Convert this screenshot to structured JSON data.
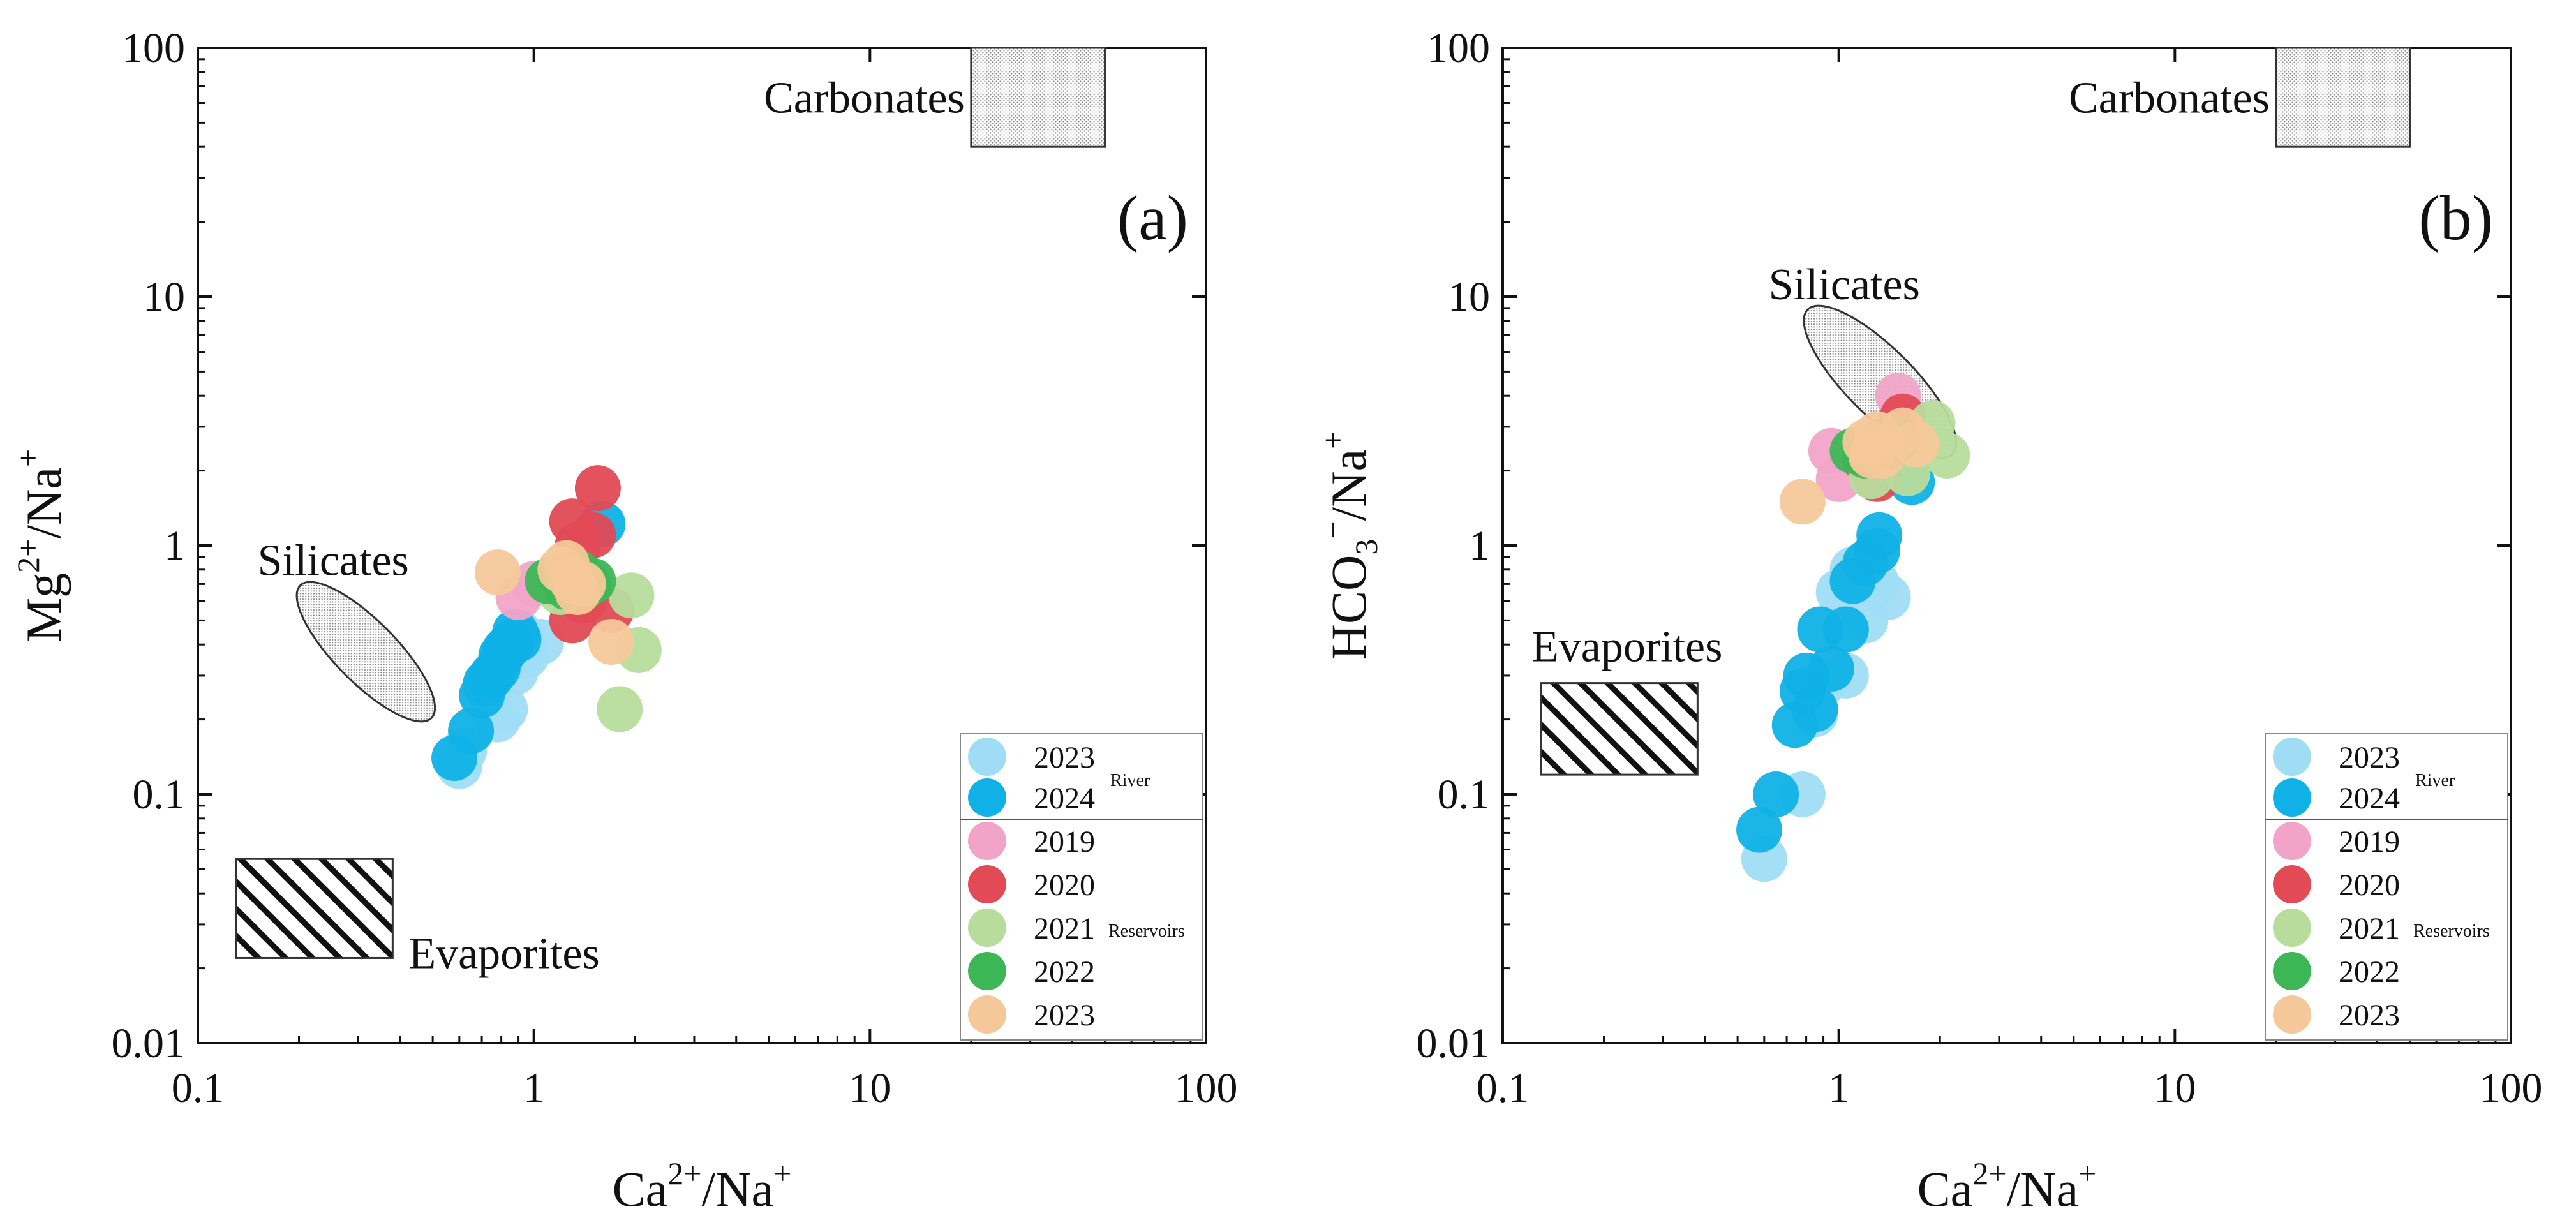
{
  "colors": {
    "river_2023": "#9FDDF5",
    "river_2024": "#0FB1E6",
    "res_2019": "#F2A4C8",
    "res_2020": "#E24A55",
    "res_2021": "#B7DC9C",
    "res_2022": "#3DB656",
    "res_2023": "#F5C89A"
  },
  "legend": {
    "river_group": "River",
    "reservoir_group": "Reservoirs",
    "river_items": [
      {
        "label": "2023",
        "color_key": "river_2023"
      },
      {
        "label": "2024",
        "color_key": "river_2024"
      }
    ],
    "reservoir_items": [
      {
        "label": "2019",
        "color_key": "res_2019"
      },
      {
        "label": "2020",
        "color_key": "res_2020"
      },
      {
        "label": "2021",
        "color_key": "res_2021"
      },
      {
        "label": "2022",
        "color_key": "res_2022"
      },
      {
        "label": "2023",
        "color_key": "res_2023"
      }
    ]
  },
  "chart_data": [
    {
      "type": "scatter",
      "panel": "(a)",
      "xscale": "log",
      "yscale": "log",
      "xlim": [
        0.1,
        100
      ],
      "ylim": [
        0.01,
        100
      ],
      "xticks": [
        "0.1",
        "1",
        "10",
        "100"
      ],
      "yticks": [
        "0.01",
        "0.1",
        "1",
        "10",
        "100"
      ],
      "xlabel": {
        "base1": "Ca",
        "sup1": "2+",
        "mid": "/Na",
        "sup2": "+",
        "sub": ""
      },
      "ylabel": {
        "base1": "Mg",
        "sup1": "2+",
        "mid": "/Na",
        "sup2": "+",
        "sub": ""
      },
      "regions": [
        {
          "name": "Carbonates",
          "label": "Carbonates",
          "kind": "dotted-rect",
          "x": [
            20,
            50
          ],
          "y": [
            40,
            100
          ]
        },
        {
          "name": "Silicates",
          "label": "Silicates",
          "kind": "dotted-ellipse",
          "x": [
            0.2,
            0.5
          ],
          "y": [
            0.2,
            0.7
          ]
        },
        {
          "name": "Evaporites",
          "label": "Evaporites",
          "kind": "hatched-rect",
          "x": [
            0.13,
            0.38
          ],
          "y": [
            0.022,
            0.055
          ]
        }
      ],
      "series": [
        {
          "name": "2023 River",
          "color_key": "river_2023",
          "points": [
            [
              0.6,
              0.13
            ],
            [
              0.62,
              0.15
            ],
            [
              0.78,
              0.2
            ],
            [
              0.82,
              0.22
            ],
            [
              0.72,
              0.27
            ],
            [
              0.88,
              0.31
            ],
            [
              0.95,
              0.36
            ],
            [
              1.05,
              0.41
            ],
            [
              0.8,
              0.33
            ],
            [
              0.9,
              0.45
            ],
            [
              0.85,
              0.38
            ]
          ]
        },
        {
          "name": "2024 River",
          "color_key": "river_2024",
          "points": [
            [
              0.58,
              0.14
            ],
            [
              0.65,
              0.18
            ],
            [
              0.7,
              0.25
            ],
            [
              0.72,
              0.28
            ],
            [
              0.75,
              0.3
            ],
            [
              0.78,
              0.32
            ],
            [
              0.8,
              0.36
            ],
            [
              0.82,
              0.38
            ],
            [
              0.85,
              0.4
            ],
            [
              0.9,
              0.42
            ],
            [
              0.88,
              0.45
            ],
            [
              1.6,
              1.22
            ]
          ]
        },
        {
          "name": "2019 Reservoirs",
          "color_key": "res_2019",
          "points": [
            [
              0.9,
              0.62
            ],
            [
              1.0,
              0.7
            ],
            [
              1.2,
              0.8
            ]
          ]
        },
        {
          "name": "2020 Reservoirs",
          "color_key": "res_2020",
          "points": [
            [
              1.3,
              1.25
            ],
            [
              1.55,
              1.7
            ],
            [
              1.5,
              1.1
            ],
            [
              1.35,
              1.0
            ],
            [
              1.3,
              0.5
            ],
            [
              1.7,
              0.55
            ],
            [
              1.4,
              0.6
            ]
          ]
        },
        {
          "name": "2021 Reservoirs",
          "color_key": "res_2021",
          "points": [
            [
              1.95,
              0.63
            ],
            [
              2.05,
              0.38
            ],
            [
              1.8,
              0.22
            ],
            [
              1.2,
              0.65
            ],
            [
              1.4,
              0.72
            ]
          ]
        },
        {
          "name": "2022 Reservoirs",
          "color_key": "res_2022",
          "points": [
            [
              1.1,
              0.72
            ],
            [
              1.2,
              0.75
            ],
            [
              1.35,
              0.78
            ],
            [
              1.5,
              0.72
            ],
            [
              1.25,
              0.68
            ],
            [
              1.45,
              0.7
            ]
          ]
        },
        {
          "name": "2023 Reservoirs",
          "color_key": "res_2023",
          "points": [
            [
              0.78,
              0.78
            ],
            [
              1.25,
              0.85
            ],
            [
              1.3,
              0.72
            ],
            [
              1.4,
              0.7
            ],
            [
              1.2,
              0.8
            ],
            [
              1.7,
              0.41
            ],
            [
              1.35,
              0.65
            ]
          ]
        }
      ]
    },
    {
      "type": "scatter",
      "panel": "(b)",
      "xscale": "log",
      "yscale": "log",
      "xlim": [
        0.1,
        100
      ],
      "ylim": [
        0.01,
        100
      ],
      "xticks": [
        "0.1",
        "1",
        "10",
        "100"
      ],
      "yticks": [
        "0.01",
        "0.1",
        "1",
        "10",
        "100"
      ],
      "xlabel": {
        "base1": "Ca",
        "sup1": "2+",
        "mid": "/Na",
        "sup2": "+",
        "sub": ""
      },
      "ylabel": {
        "base1": "HCO",
        "sub": "3",
        "sup1": "−",
        "mid": "/Na",
        "sup2": "+"
      },
      "regions": [
        {
          "name": "Carbonates",
          "label": "Carbonates",
          "kind": "dotted-rect",
          "x": [
            20,
            50
          ],
          "y": [
            40,
            100
          ]
        },
        {
          "name": "Silicates",
          "label": "Silicates",
          "kind": "dotted-ellipse",
          "x": [
            0.8,
            2.2
          ],
          "y": [
            2.3,
            9
          ]
        },
        {
          "name": "Evaporites",
          "label": "Evaporites",
          "kind": "hatched-rect",
          "x": [
            0.13,
            0.38
          ],
          "y": [
            0.12,
            0.28
          ]
        }
      ],
      "series": [
        {
          "name": "2023 River",
          "color_key": "river_2023",
          "points": [
            [
              0.6,
              0.055
            ],
            [
              0.78,
              0.1
            ],
            [
              0.85,
              0.21
            ],
            [
              0.9,
              0.28
            ],
            [
              1.05,
              0.3
            ],
            [
              1.0,
              0.65
            ],
            [
              1.1,
              0.8
            ],
            [
              1.4,
              0.62
            ],
            [
              1.3,
              0.7
            ],
            [
              1.2,
              0.5
            ]
          ]
        },
        {
          "name": "2024 River",
          "color_key": "river_2024",
          "points": [
            [
              0.58,
              0.072
            ],
            [
              0.65,
              0.1
            ],
            [
              0.74,
              0.19
            ],
            [
              0.78,
              0.26
            ],
            [
              0.8,
              0.3
            ],
            [
              0.85,
              0.22
            ],
            [
              0.88,
              0.46
            ],
            [
              1.05,
              0.46
            ],
            [
              1.1,
              0.72
            ],
            [
              1.2,
              0.85
            ],
            [
              1.3,
              0.95
            ],
            [
              1.32,
              1.1
            ],
            [
              0.95,
              0.32
            ],
            [
              1.65,
              1.8
            ]
          ]
        },
        {
          "name": "2019 Reservoirs",
          "color_key": "res_2019",
          "points": [
            [
              1.5,
              4.0
            ],
            [
              0.95,
              2.4
            ],
            [
              1.0,
              1.85
            ]
          ]
        },
        {
          "name": "2020 Reservoirs",
          "color_key": "res_2020",
          "points": [
            [
              1.55,
              3.3
            ],
            [
              1.3,
              1.85
            ],
            [
              1.2,
              2.2
            ]
          ]
        },
        {
          "name": "2021 Reservoirs",
          "color_key": "res_2021",
          "points": [
            [
              1.9,
              3.1
            ],
            [
              2.1,
              2.3
            ],
            [
              1.6,
              1.95
            ],
            [
              1.25,
              1.9
            ],
            [
              1.7,
              2.5
            ]
          ]
        },
        {
          "name": "2022 Reservoirs",
          "color_key": "res_2022",
          "points": [
            [
              1.1,
              2.4
            ],
            [
              1.3,
              2.6
            ],
            [
              1.5,
              2.7
            ],
            [
              1.2,
              2.3
            ],
            [
              1.4,
              2.5
            ]
          ]
        },
        {
          "name": "2023 Reservoirs",
          "color_key": "res_2023",
          "points": [
            [
              0.78,
              1.5
            ],
            [
              1.2,
              2.6
            ],
            [
              1.3,
              2.8
            ],
            [
              1.55,
              2.9
            ],
            [
              1.7,
              2.55
            ],
            [
              1.35,
              2.3
            ],
            [
              1.25,
              2.3
            ]
          ]
        }
      ]
    }
  ]
}
